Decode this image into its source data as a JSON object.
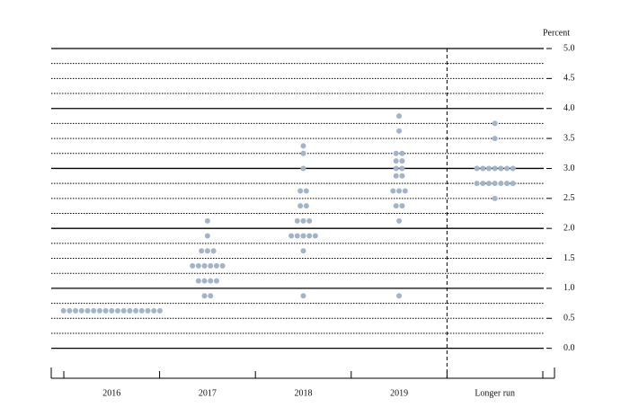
{
  "chart_data": {
    "type": "dot",
    "y_axis_label": "Percent",
    "categories": [
      "2016",
      "2017",
      "2018",
      "2019",
      "Longer run"
    ],
    "dots": [
      [
        {
          "value": 0.625,
          "count": 17
        }
      ],
      [
        {
          "value": 0.875,
          "count": 2
        },
        {
          "value": 1.125,
          "count": 4
        },
        {
          "value": 1.375,
          "count": 6
        },
        {
          "value": 1.625,
          "count": 3
        },
        {
          "value": 1.875,
          "count": 1
        },
        {
          "value": 2.125,
          "count": 1
        }
      ],
      [
        {
          "value": 0.875,
          "count": 1
        },
        {
          "value": 1.625,
          "count": 1
        },
        {
          "value": 1.875,
          "count": 5
        },
        {
          "value": 2.125,
          "count": 3
        },
        {
          "value": 2.375,
          "count": 2
        },
        {
          "value": 2.625,
          "count": 2
        },
        {
          "value": 3.0,
          "count": 1
        },
        {
          "value": 3.25,
          "count": 1
        },
        {
          "value": 3.375,
          "count": 1
        }
      ],
      [
        {
          "value": 0.875,
          "count": 1
        },
        {
          "value": 2.125,
          "count": 1
        },
        {
          "value": 2.375,
          "count": 2
        },
        {
          "value": 2.625,
          "count": 3
        },
        {
          "value": 2.875,
          "count": 2
        },
        {
          "value": 3.0,
          "count": 2
        },
        {
          "value": 3.125,
          "count": 2
        },
        {
          "value": 3.25,
          "count": 2
        },
        {
          "value": 3.625,
          "count": 1
        },
        {
          "value": 3.875,
          "count": 1
        }
      ],
      [
        {
          "value": 2.5,
          "count": 1
        },
        {
          "value": 2.75,
          "count": 7
        },
        {
          "value": 3.0,
          "count": 7
        },
        {
          "value": 3.5,
          "count": 1
        },
        {
          "value": 3.75,
          "count": 1
        }
      ]
    ],
    "color": "#a3b4c9",
    "ylim": [
      -0.5,
      5.0
    ],
    "yticks": [
      {
        "value": 0,
        "label": "0.0"
      },
      0.5,
      {
        "value": 1,
        "label": "1.0"
      },
      1.5,
      {
        "value": 2,
        "label": "2.0"
      },
      2.5,
      {
        "value": 3,
        "label": "3.0"
      },
      3.5,
      {
        "value": 4,
        "label": "4.0"
      },
      4.5,
      {
        "value": 5,
        "label": "5.0"
      }
    ],
    "minor_yticks": [
      0.25,
      0.75,
      1.25,
      1.75,
      2.25,
      2.75,
      3.25,
      3.75,
      4.25,
      4.75
    ],
    "grid": true
  }
}
